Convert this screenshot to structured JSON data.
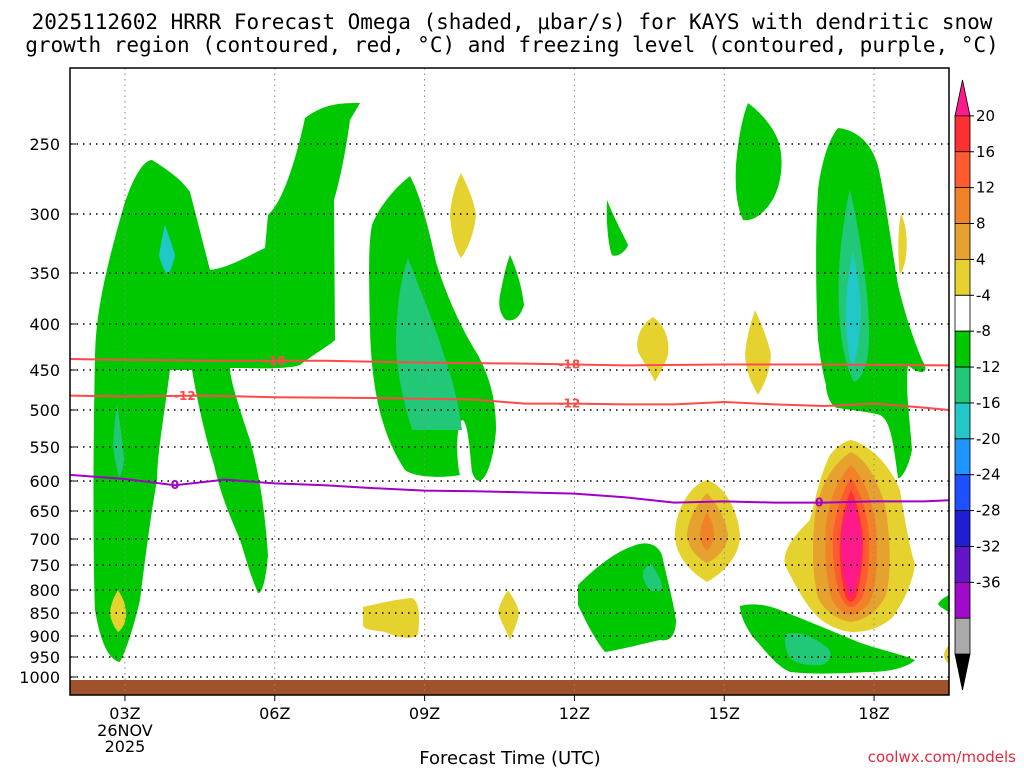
{
  "chart_data": {
    "type": "heatmap",
    "title_lines": [
      "2025112602 HRRR Forecast Omega (shaded, μbar/s) for KAYS with dendritic snow",
      "growth region (contoured, red, °C) and freezing level (contoured, purple, °C)"
    ],
    "xlabel": "Forecast Time (UTC)",
    "ylabel": "",
    "x_range_hours": [
      1.9,
      19.5
    ],
    "x_ticks": [
      {
        "hour": 3,
        "label": "03Z",
        "sub": [
          "26NOV",
          "2025"
        ]
      },
      {
        "hour": 6,
        "label": "06Z"
      },
      {
        "hour": 9,
        "label": "09Z"
      },
      {
        "hour": 12,
        "label": "12Z"
      },
      {
        "hour": 15,
        "label": "15Z"
      },
      {
        "hour": 18,
        "label": "18Z"
      }
    ],
    "y_axis": "pressure_hPa_inverted",
    "y_ticks": [
      250,
      300,
      350,
      400,
      450,
      500,
      550,
      600,
      650,
      700,
      750,
      800,
      850,
      900,
      950,
      1000
    ],
    "colorbar": {
      "labels": [
        "20",
        "16",
        "12",
        "8",
        "4",
        "-4",
        "-8",
        "-12",
        "-16",
        "-20",
        "-24",
        "-28",
        "-32",
        "-36"
      ],
      "colors": [
        "#ff1a8c",
        "#ff3030",
        "#ff5a30",
        "#f08228",
        "#e6a22e",
        "#e6d22e",
        "#ffffff",
        "#00c800",
        "#20c878",
        "#22c8c8",
        "#1e96ff",
        "#1e50ff",
        "#1e1ed2",
        "#6414c8",
        "#a00ac8",
        "#aaaaaa",
        "#000000"
      ]
    },
    "contours": [
      {
        "name": "-18 °C isotherm",
        "color": "#ff4a4a",
        "label": "-18",
        "points": [
          [
            1.9,
            438
          ],
          [
            3,
            439
          ],
          [
            5,
            440
          ],
          [
            7,
            440
          ],
          [
            9,
            442
          ],
          [
            11,
            443
          ],
          [
            13,
            445
          ],
          [
            15,
            444
          ],
          [
            17,
            444
          ],
          [
            19.5,
            445
          ]
        ],
        "label_hours": [
          6.0,
          11.9
        ]
      },
      {
        "name": "-12 °C isotherm",
        "color": "#ff4a4a",
        "label": "-12",
        "points": [
          [
            1.9,
            482
          ],
          [
            3,
            483
          ],
          [
            4.5,
            482
          ],
          [
            6,
            484
          ],
          [
            8,
            485
          ],
          [
            10,
            487
          ],
          [
            11,
            492
          ],
          [
            12,
            492
          ],
          [
            13,
            493
          ],
          [
            14,
            493
          ],
          [
            15,
            490
          ],
          [
            16,
            493
          ],
          [
            17,
            495
          ],
          [
            18,
            492
          ],
          [
            19,
            497
          ],
          [
            19.5,
            500
          ]
        ],
        "label_hours": [
          4.2,
          11.9
        ]
      },
      {
        "name": "0 °C freezing level",
        "color": "#a000c8",
        "label": "0",
        "points": [
          [
            1.9,
            591
          ],
          [
            3,
            597
          ],
          [
            4,
            607
          ],
          [
            5,
            598
          ],
          [
            6,
            604
          ],
          [
            7,
            607
          ],
          [
            8,
            612
          ],
          [
            9,
            616
          ],
          [
            10,
            617
          ],
          [
            11,
            619
          ],
          [
            12,
            621
          ],
          [
            13,
            627
          ],
          [
            14,
            636
          ],
          [
            15,
            634
          ],
          [
            16,
            636
          ],
          [
            17,
            636
          ],
          [
            18,
            634
          ],
          [
            19,
            634
          ],
          [
            19.5,
            632
          ]
        ],
        "label_hours": [
          4.0,
          16.9
        ]
      }
    ],
    "omega_regions": [
      {
        "category": "-4 to -8",
        "color": "#00c800",
        "approx": "03Z-06Z 250-660 hPa"
      },
      {
        "category": "-4 to -8",
        "color": "#00c800",
        "approx": "08.5Z-10Z 300-600 hPa"
      },
      {
        "category": "-8 to -12",
        "color": "#20c878",
        "approx": "09Z 350-530 hPa"
      },
      {
        "category": "-4 to -8",
        "color": "#00c800",
        "approx": "13Z-15Z 700-900 hPa"
      },
      {
        "category": "-4 to -8",
        "color": "#00c800",
        "approx": "17.5Z-19Z 250-600 hPa"
      },
      {
        "category": "-12 to -16",
        "color": "#22c8c8",
        "approx": "18Z 330-440 hPa"
      },
      {
        "category": "4 to 8",
        "color": "#e6d22e",
        "approx": "17Z-19Z 570-880 hPa"
      },
      {
        "category": ">20",
        "color": "#ff1a8c",
        "approx": "18Z 660-820 hPa"
      },
      {
        "category": "4 to 8",
        "color": "#e6d22e",
        "approx": "15Z 630-760 hPa"
      },
      {
        "category": "-4 to -8",
        "color": "#00c800",
        "approx": "16Z-19Z 860-980 hPa"
      }
    ]
  },
  "credit": "coolwx.com/models"
}
